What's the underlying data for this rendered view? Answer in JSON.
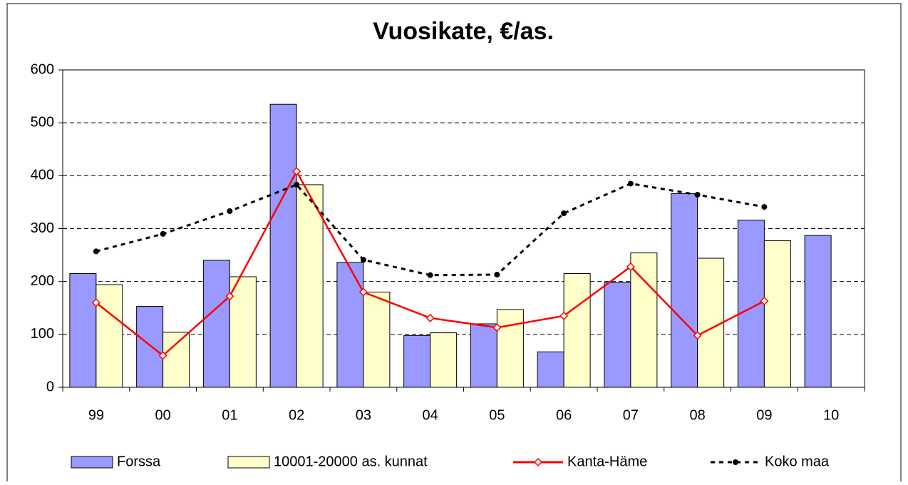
{
  "chart_data": {
    "type": "bar",
    "title": "Vuosikate, €/as.",
    "categories": [
      "99",
      "00",
      "01",
      "02",
      "03",
      "04",
      "05",
      "06",
      "07",
      "08",
      "09",
      "10"
    ],
    "series": [
      {
        "name": "Forssa",
        "type": "bar",
        "color": "#9999ff",
        "values": [
          215,
          153,
          240,
          535,
          236,
          98,
          120,
          67,
          198,
          366,
          316,
          287
        ]
      },
      {
        "name": "10001-20000 as. kunnat",
        "type": "bar",
        "color": "#ffffcc",
        "values": [
          194,
          104,
          209,
          383,
          180,
          103,
          147,
          215,
          254,
          244,
          277,
          null
        ]
      },
      {
        "name": "Kanta-Häme",
        "type": "line",
        "color": "#ff0000",
        "marker": "diamond",
        "dashed": false,
        "values": [
          160,
          60,
          172,
          408,
          180,
          131,
          113,
          135,
          228,
          98,
          163,
          null
        ]
      },
      {
        "name": "Koko maa",
        "type": "line",
        "color": "#000000",
        "marker": "circle",
        "dashed": true,
        "values": [
          257,
          290,
          333,
          383,
          241,
          212,
          213,
          329,
          385,
          364,
          341,
          null
        ]
      }
    ],
    "ylim": [
      0,
      600
    ],
    "yticks": [
      0,
      100,
      200,
      300,
      400,
      500,
      600
    ],
    "grid": true,
    "legend": "bottom"
  }
}
